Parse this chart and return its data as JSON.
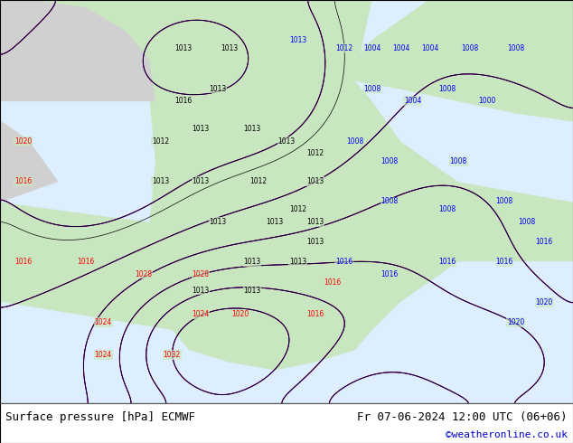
{
  "title_left": "Surface pressure [hPa] ECMWF",
  "title_right": "Fr 07-06-2024 12:00 UTC (06+06)",
  "watermark": "©weatheronline.co.uk",
  "bg_color": "#e8e8e8",
  "land_color": "#c8e6c0",
  "ocean_color": "#ddeeff",
  "fig_width": 6.34,
  "fig_height": 4.9,
  "dpi": 100,
  "bottom_bar_color": "#ffffff",
  "bottom_bar_height": 0.09,
  "font_size_bottom": 9,
  "font_size_watermark": 8
}
